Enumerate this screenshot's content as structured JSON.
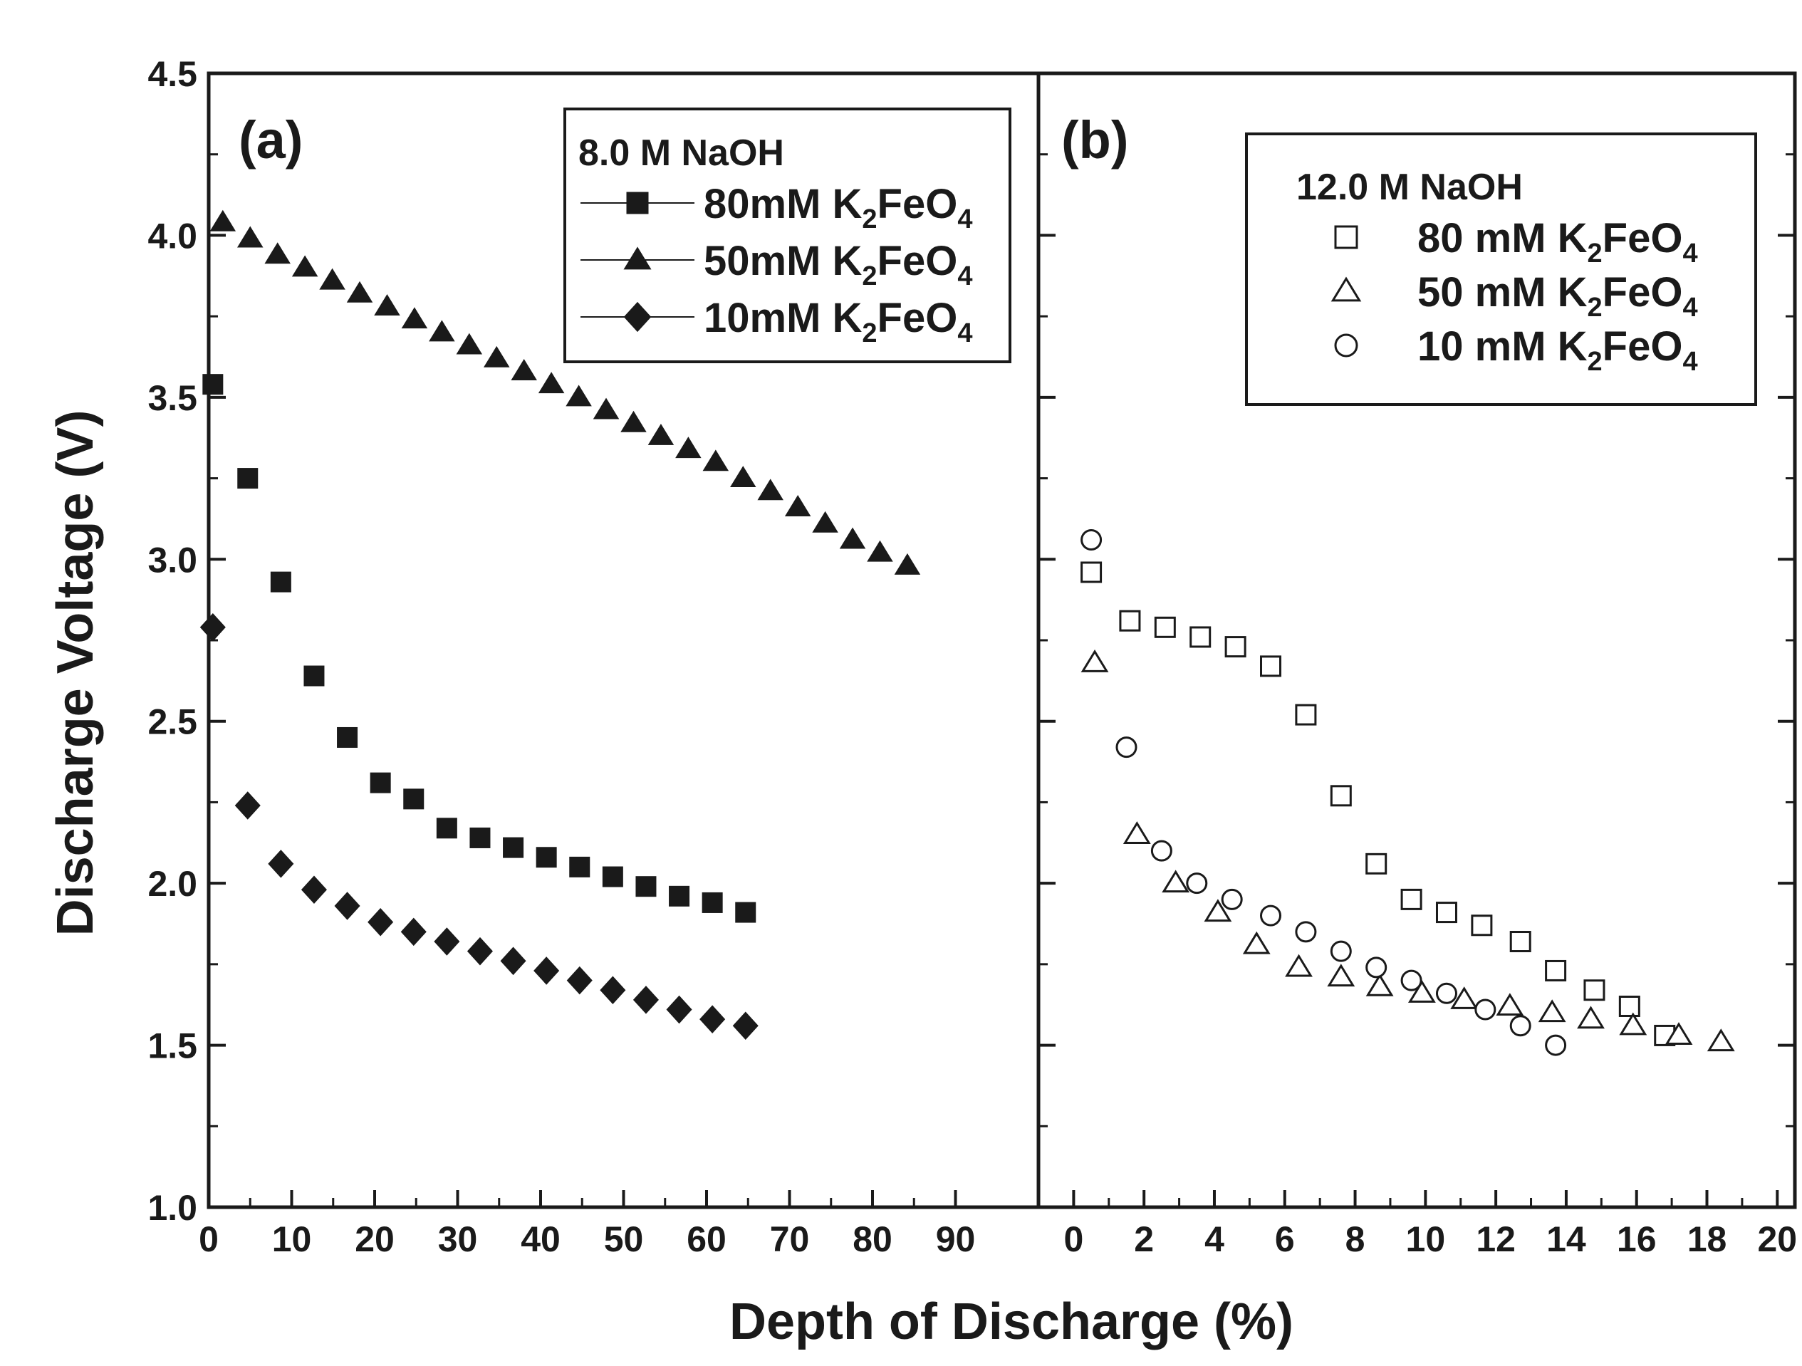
{
  "chart_data": [
    {
      "type": "scatter",
      "panel": "(a)",
      "xlabel": "Depth of Discharge (%)",
      "ylabel": "Discharge Voltage (V)",
      "xlim": [
        0,
        100
      ],
      "ylim": [
        1.0,
        4.5
      ],
      "xticks": [
        0,
        10,
        20,
        30,
        40,
        50,
        60,
        70,
        80,
        90
      ],
      "yticks": [
        1.0,
        1.5,
        2.0,
        2.5,
        3.0,
        3.5,
        4.0,
        4.5
      ],
      "legend_title": "8.0 M NaOH",
      "legend_position": "top-right",
      "series": [
        {
          "name": "80mM K2FeO4",
          "label_main": "80mM K",
          "label_sub1": "2",
          "label_mid": "FeO",
          "label_sub2": "4",
          "marker": "square",
          "x": [
            0.5,
            4.7,
            8.7,
            12.7,
            16.7,
            20.7,
            24.7,
            28.7,
            32.7,
            36.7,
            40.7,
            44.7,
            48.7,
            52.7,
            56.7,
            60.7,
            64.7
          ],
          "y": [
            3.54,
            3.25,
            2.93,
            2.64,
            2.45,
            2.31,
            2.26,
            2.17,
            2.14,
            2.11,
            2.08,
            2.05,
            2.02,
            1.99,
            1.96,
            1.94,
            1.91
          ]
        },
        {
          "name": "50mM K2FeO4",
          "label_main": "50mM K",
          "label_sub1": "2",
          "label_mid": "FeO",
          "label_sub2": "4",
          "marker": "triangle",
          "x": [
            1.7,
            5.0,
            8.3,
            11.6,
            14.9,
            18.2,
            21.5,
            24.8,
            28.1,
            31.4,
            34.7,
            38.0,
            41.3,
            44.6,
            47.9,
            51.2,
            54.5,
            57.8,
            61.1,
            64.4,
            67.7,
            71.0,
            74.3,
            77.6,
            80.9,
            84.2
          ],
          "y": [
            4.04,
            3.99,
            3.94,
            3.9,
            3.86,
            3.82,
            3.78,
            3.74,
            3.7,
            3.66,
            3.62,
            3.58,
            3.54,
            3.5,
            3.46,
            3.42,
            3.38,
            3.34,
            3.3,
            3.25,
            3.21,
            3.16,
            3.11,
            3.06,
            3.02,
            2.98
          ]
        },
        {
          "name": "10mM K2FeO4",
          "label_main": "10mM K",
          "label_sub1": "2",
          "label_mid": "FeO",
          "label_sub2": "4",
          "marker": "diamond",
          "x": [
            0.5,
            4.7,
            8.7,
            12.7,
            16.7,
            20.7,
            24.7,
            28.7,
            32.7,
            36.7,
            40.7,
            44.7,
            48.7,
            52.7,
            56.7,
            60.7,
            64.7
          ],
          "y": [
            2.79,
            2.24,
            2.06,
            1.98,
            1.93,
            1.88,
            1.85,
            1.82,
            1.79,
            1.76,
            1.73,
            1.7,
            1.67,
            1.64,
            1.61,
            1.58,
            1.56
          ]
        }
      ]
    },
    {
      "type": "scatter",
      "panel": "(b)",
      "xlabel": "Depth of Discharge (%)",
      "ylabel": "Discharge Voltage (V)",
      "xlim": [
        -1,
        20.5
      ],
      "ylim": [
        1.0,
        4.5
      ],
      "xticks": [
        0,
        2,
        4,
        6,
        8,
        10,
        12,
        14,
        16,
        18,
        20
      ],
      "legend_title": "12.0 M NaOH",
      "legend_position": "top-right",
      "series": [
        {
          "name": "80 mM K2FeO4",
          "label_main": "80 mM K",
          "label_sub1": "2",
          "label_mid": "FeO",
          "label_sub2": "4",
          "marker": "open-square",
          "x": [
            0.5,
            1.6,
            2.6,
            3.6,
            4.6,
            5.6,
            6.6,
            7.6,
            8.6,
            9.6,
            10.6,
            11.6,
            12.7,
            13.7,
            14.8,
            15.8,
            16.8
          ],
          "y": [
            2.96,
            2.81,
            2.79,
            2.76,
            2.73,
            2.67,
            2.52,
            2.27,
            2.06,
            1.95,
            1.91,
            1.87,
            1.82,
            1.73,
            1.67,
            1.62,
            1.53
          ]
        },
        {
          "name": "50 mM K2FeO4",
          "label_main": "50 mM K",
          "label_sub1": "2",
          "label_mid": "FeO",
          "label_sub2": "4",
          "marker": "open-triangle",
          "x": [
            0.6,
            1.8,
            2.9,
            4.1,
            5.2,
            6.4,
            7.6,
            8.7,
            9.9,
            11.1,
            12.4,
            13.6,
            14.7,
            15.9,
            17.2,
            18.4
          ],
          "y": [
            2.68,
            2.15,
            2.0,
            1.91,
            1.81,
            1.74,
            1.71,
            1.68,
            1.66,
            1.64,
            1.62,
            1.6,
            1.58,
            1.56,
            1.53,
            1.51
          ]
        },
        {
          "name": "10 mM K2FeO4",
          "label_main": "10 mM K",
          "label_sub1": "2",
          "label_mid": "FeO",
          "label_sub2": "4",
          "marker": "open-circle",
          "x": [
            0.5,
            1.5,
            2.5,
            3.5,
            4.5,
            5.6,
            6.6,
            7.6,
            8.6,
            9.6,
            10.6,
            11.7,
            12.7,
            13.7
          ],
          "y": [
            3.06,
            2.42,
            2.1,
            2.0,
            1.95,
            1.9,
            1.85,
            1.79,
            1.74,
            1.7,
            1.66,
            1.61,
            1.56,
            1.5
          ]
        }
      ]
    }
  ]
}
